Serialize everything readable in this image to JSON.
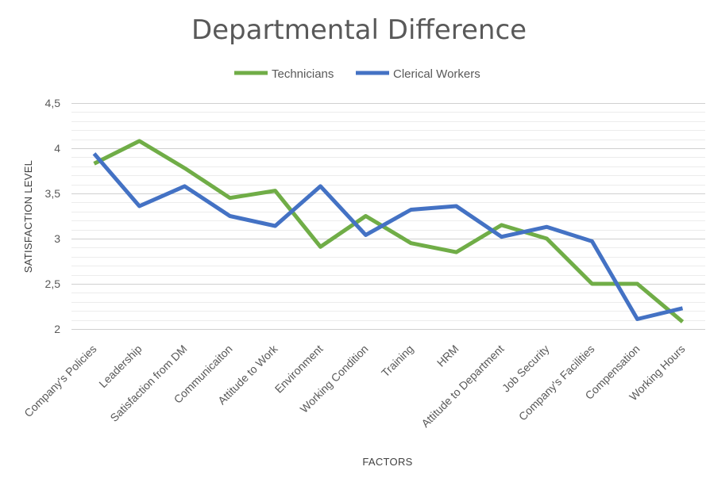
{
  "chart_data": {
    "type": "line",
    "title": "Departmental Difference",
    "xlabel": "FACTORS",
    "ylabel": "SATISFACTION LEVEL",
    "ylim": [
      2,
      4.5
    ],
    "y_ticks": [
      "2",
      "2,5",
      "3",
      "3,5",
      "4",
      "4,5"
    ],
    "y_tick_values": [
      2,
      2.5,
      3,
      3.5,
      4,
      4.5
    ],
    "minor_gridline_step": 0.1,
    "legend_position": "top",
    "categories": [
      "Company's Policies",
      "Leadership",
      "Satisfaction from DM",
      "Communicaiton",
      "Attitude to Work",
      "Environment",
      "Working Condition",
      "Training",
      "HRM",
      "Attitude to Department",
      "Job Security",
      "Company's Facilities",
      "Compensation",
      "Working Hours"
    ],
    "series": [
      {
        "name": "Technicians",
        "color": "#70ad47",
        "values": [
          3.83,
          4.08,
          3.78,
          3.45,
          3.53,
          2.91,
          3.25,
          2.95,
          2.85,
          3.15,
          3.0,
          2.5,
          2.5,
          2.08
        ]
      },
      {
        "name": "Clerical Workers",
        "color": "#4472c4",
        "values": [
          3.94,
          3.36,
          3.58,
          3.25,
          3.14,
          3.58,
          3.04,
          3.32,
          3.36,
          3.02,
          3.13,
          2.97,
          2.11,
          2.23
        ]
      }
    ]
  }
}
